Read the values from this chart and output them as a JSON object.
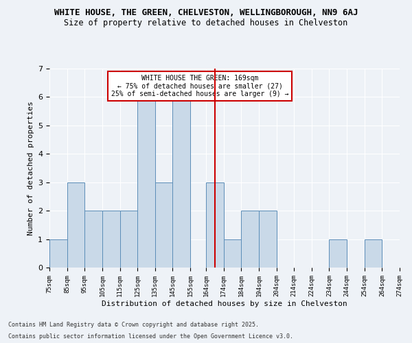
{
  "title1": "WHITE HOUSE, THE GREEN, CHELVESTON, WELLINGBOROUGH, NN9 6AJ",
  "title2": "Size of property relative to detached houses in Chelveston",
  "xlabel": "Distribution of detached houses by size in Chelveston",
  "ylabel": "Number of detached properties",
  "annotation_line1": "WHITE HOUSE THE GREEN: 169sqm",
  "annotation_line2": "← 75% of detached houses are smaller (27)",
  "annotation_line3": "25% of semi-detached houses are larger (9) →",
  "footnote1": "Contains HM Land Registry data © Crown copyright and database right 2025.",
  "footnote2": "Contains public sector information licensed under the Open Government Licence v3.0.",
  "bin_edges": [
    75,
    85,
    95,
    105,
    115,
    125,
    135,
    145,
    155,
    164,
    174,
    184,
    194,
    204,
    214,
    224,
    234,
    244,
    254,
    264,
    274
  ],
  "bar_heights": [
    1,
    3,
    2,
    2,
    2,
    6,
    3,
    6,
    0,
    3,
    1,
    2,
    2,
    0,
    0,
    0,
    1,
    0,
    1,
    0
  ],
  "bar_color": "#c9d9e8",
  "bar_edge_color": "#5b8db8",
  "reference_line_x": 169,
  "reference_line_color": "#cc0000",
  "annotation_box_edge_color": "#cc0000",
  "annotation_box_face_color": "#ffffff",
  "ylim": [
    0,
    7
  ],
  "yticks": [
    0,
    1,
    2,
    3,
    4,
    5,
    6,
    7
  ],
  "background_color": "#eef2f7",
  "plot_background_color": "#eef2f7",
  "grid_color": "#ffffff",
  "title1_fontsize": 9,
  "title2_fontsize": 8.5,
  "xlabel_fontsize": 8,
  "ylabel_fontsize": 8,
  "annotation_fontsize": 7,
  "footnote_fontsize": 6,
  "tick_fontsize": 6.5
}
